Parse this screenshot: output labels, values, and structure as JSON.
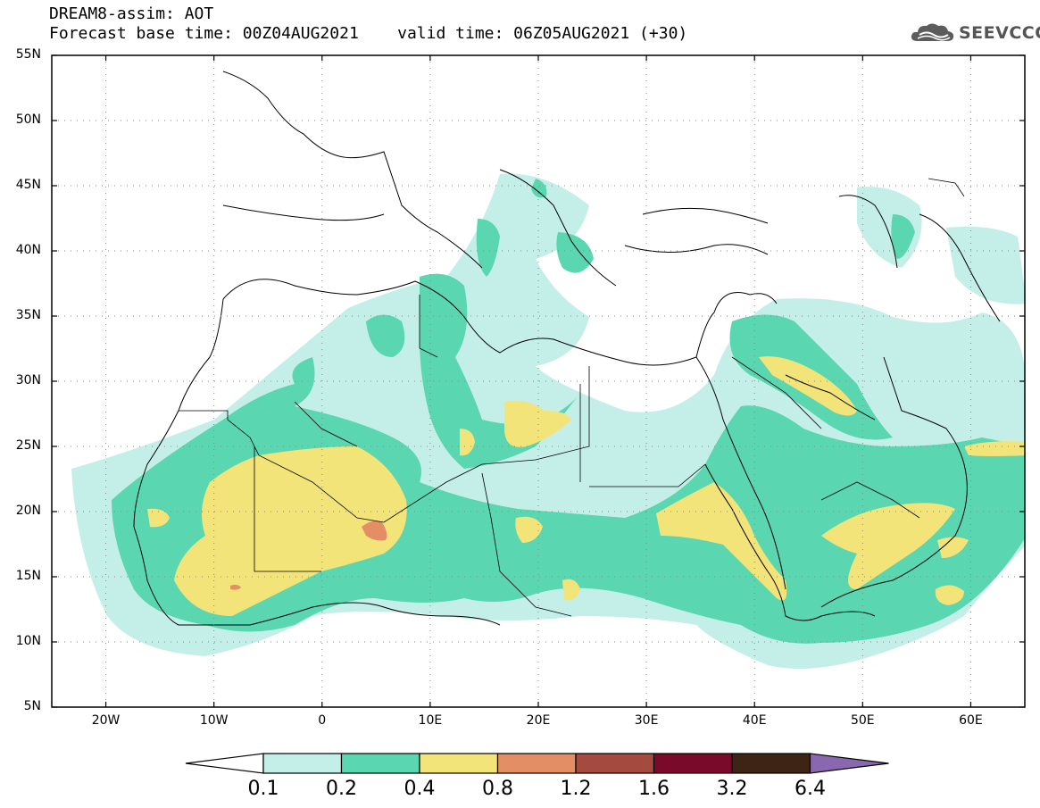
{
  "header": {
    "title_line1": "DREAM8-assim: AOT",
    "title_line2": "Forecast base time: 00Z04AUG2021    valid time: 06Z05AUG2021 (+30)"
  },
  "logo": {
    "text": "SEEVCCC",
    "icon": "cloud-icon"
  },
  "map": {
    "lon_range": [
      -25,
      65
    ],
    "lat_range": [
      5,
      55
    ],
    "y_ticks": [
      {
        "lat": 55,
        "label": "55N"
      },
      {
        "lat": 50,
        "label": "50N"
      },
      {
        "lat": 45,
        "label": "45N"
      },
      {
        "lat": 40,
        "label": "40N"
      },
      {
        "lat": 35,
        "label": "35N"
      },
      {
        "lat": 30,
        "label": "30N"
      },
      {
        "lat": 25,
        "label": "25N"
      },
      {
        "lat": 20,
        "label": "20N"
      },
      {
        "lat": 15,
        "label": "15N"
      },
      {
        "lat": 10,
        "label": "10N"
      },
      {
        "lat": 5,
        "label": "5N"
      }
    ],
    "x_ticks": [
      {
        "lon": -20,
        "label": "20W"
      },
      {
        "lon": -10,
        "label": "10W"
      },
      {
        "lon": 0,
        "label": "0"
      },
      {
        "lon": 10,
        "label": "10E"
      },
      {
        "lon": 20,
        "label": "20E"
      },
      {
        "lon": 30,
        "label": "30E"
      },
      {
        "lon": 40,
        "label": "40E"
      },
      {
        "lon": 50,
        "label": "50E"
      },
      {
        "lon": 60,
        "label": "60E"
      }
    ],
    "grid": "dotted"
  },
  "colorbar": {
    "labels": [
      "0.1",
      "0.2",
      "0.4",
      "0.8",
      "1.2",
      "1.6",
      "3.2",
      "6.4"
    ],
    "colors": [
      "#ffffff",
      "#c4efe9",
      "#5ad7b1",
      "#f3e47a",
      "#e38e64",
      "#a44a3e",
      "#7b0a2a",
      "#3d2414",
      "#8a68b0"
    ]
  }
}
